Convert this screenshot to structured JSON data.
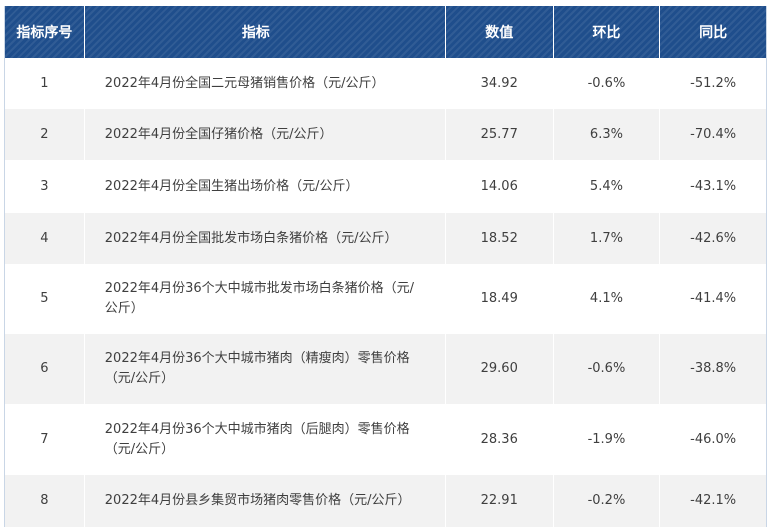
{
  "table": {
    "headers": [
      "指标序号",
      "指标",
      "数值",
      "环比",
      "同比"
    ],
    "rows": [
      {
        "id": "1",
        "label": "2022年4月份全国二元母猪销售价格（元/公斤）",
        "value": "34.92",
        "mom": "-0.6%",
        "yoy": "-51.2%"
      },
      {
        "id": "2",
        "label": "2022年4月份全国仔猪价格（元/公斤）",
        "value": "25.77",
        "mom": "6.3%",
        "yoy": "-70.4%"
      },
      {
        "id": "3",
        "label": "2022年4月份全国生猪出场价格（元/公斤）",
        "value": "14.06",
        "mom": "5.4%",
        "yoy": "-43.1%"
      },
      {
        "id": "4",
        "label": "2022年4月份全国批发市场白条猪价格（元/公斤）",
        "value": "18.52",
        "mom": "1.7%",
        "yoy": "-42.6%"
      },
      {
        "id": "5",
        "label": "2022年4月份36个大中城市批发市场白条猪价格（元/公斤）",
        "value": "18.49",
        "mom": "4.1%",
        "yoy": "-41.4%"
      },
      {
        "id": "6",
        "label": "2022年4月份36个大中城市猪肉（精瘦肉）零售价格（元/公斤）",
        "value": "29.60",
        "mom": "-0.6%",
        "yoy": "-38.8%"
      },
      {
        "id": "7",
        "label": "2022年4月份36个大中城市猪肉（后腿肉）零售价格（元/公斤）",
        "value": "28.36",
        "mom": "-1.9%",
        "yoy": "-46.0%"
      },
      {
        "id": "8",
        "label": "2022年4月份县乡集贸市场猪肉零售价格（元/公斤）",
        "value": "22.91",
        "mom": "-0.2%",
        "yoy": "-42.1%"
      }
    ]
  },
  "colors": {
    "header_bg": "#1f4e8c",
    "header_text": "#ffffff",
    "row_alt_bg": "#f2f2f2",
    "body_text": "#3f3f3f"
  }
}
